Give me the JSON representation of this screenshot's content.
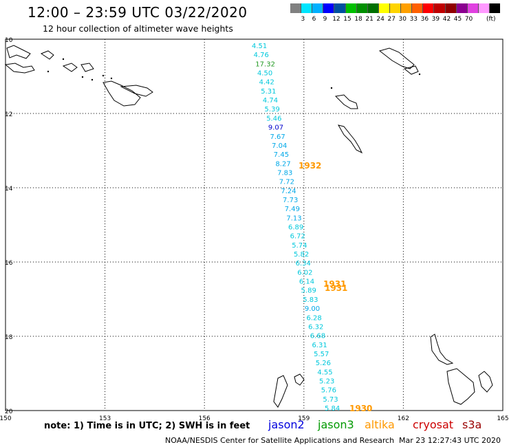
{
  "header": {
    "title": "12:00 – 23:59 UTC 03/22/2020",
    "subtitle": "12 hour collection of altimeter wave heights"
  },
  "legend": {
    "unit": "(ft)",
    "colors": [
      "#808080",
      "#00e5ff",
      "#00b0ff",
      "#0000ff",
      "#0050a0",
      "#00c000",
      "#009000",
      "#007000",
      "#ffff00",
      "#ffd400",
      "#ffa000",
      "#ff6000",
      "#ff0000",
      "#c00000",
      "#900000",
      "#8b0090",
      "#e040e0",
      "#ff99ff",
      "#000000"
    ],
    "labels": [
      "3",
      "6",
      "9",
      "12",
      "15",
      "18",
      "21",
      "24",
      "27",
      "30",
      "33",
      "36",
      "39",
      "42",
      "45",
      "70"
    ]
  },
  "axes": {
    "lat_labels": [
      "10",
      "12",
      "14",
      "16",
      "18",
      "20"
    ],
    "lon_labels": [
      "150",
      "153",
      "156",
      "159",
      "162",
      "165"
    ]
  },
  "readings": [
    {
      "value": "4.51",
      "color": "#00c8dc"
    },
    {
      "value": "4.76",
      "color": "#00c8dc"
    },
    {
      "value": "17.32",
      "color": "#229922"
    },
    {
      "value": "4.50",
      "color": "#00c8dc"
    },
    {
      "value": "4.42",
      "color": "#00c8dc"
    },
    {
      "value": "5.31",
      "color": "#00c8dc"
    },
    {
      "value": "4.74",
      "color": "#00c8dc"
    },
    {
      "value": "5.39",
      "color": "#00c8dc"
    },
    {
      "value": "5.46",
      "color": "#00c8dc"
    },
    {
      "value": "9.07",
      "color": "#0000cc"
    },
    {
      "value": "7.67",
      "color": "#00a8e8"
    },
    {
      "value": "7.04",
      "color": "#00a8e8"
    },
    {
      "value": "7.45",
      "color": "#00a8e8"
    },
    {
      "value": "8.27",
      "color": "#00a8e8"
    },
    {
      "value": "7.83",
      "color": "#00a8e8"
    },
    {
      "value": "7.72",
      "color": "#00a8e8"
    },
    {
      "value": "7.24",
      "color": "#00a8e8"
    },
    {
      "value": "7.73",
      "color": "#00a8e8"
    },
    {
      "value": "7.49",
      "color": "#00a8e8"
    },
    {
      "value": "7.13",
      "color": "#00a8e8"
    },
    {
      "value": "6.89",
      "color": "#00c8dc"
    },
    {
      "value": "6.72",
      "color": "#00c8dc"
    },
    {
      "value": "5.74",
      "color": "#00c8dc"
    },
    {
      "value": "5.82",
      "color": "#00c8dc"
    },
    {
      "value": "6.34",
      "color": "#00c8dc"
    },
    {
      "value": "6.02",
      "color": "#00c8dc"
    },
    {
      "value": "6.14",
      "color": "#00c8dc"
    },
    {
      "value": "5.89",
      "color": "#00c8dc"
    },
    {
      "value": "5.83",
      "color": "#00c8dc"
    },
    {
      "value": "9.00",
      "color": "#00a8e8"
    },
    {
      "value": "6.28",
      "color": "#00c8dc"
    },
    {
      "value": "6.32",
      "color": "#00c8dc"
    },
    {
      "value": "6.68",
      "color": "#00c8dc"
    },
    {
      "value": "6.31",
      "color": "#00c8dc"
    },
    {
      "value": "5.57",
      "color": "#00c8dc"
    },
    {
      "value": "5.26",
      "color": "#00c8dc"
    },
    {
      "value": "4.55",
      "color": "#00c8dc"
    },
    {
      "value": "5.23",
      "color": "#00c8dc"
    },
    {
      "value": "5.76",
      "color": "#00c8dc"
    },
    {
      "value": "5.73",
      "color": "#00c8dc"
    },
    {
      "value": "5.84",
      "color": "#00c8dc"
    }
  ],
  "time_markers": [
    {
      "text": "1932",
      "color": "#ff9900"
    },
    {
      "text": "1931",
      "color": "#ff9900"
    },
    {
      "text": "1931",
      "color": "#ff9900"
    },
    {
      "text": "1930",
      "color": "#ff9900"
    }
  ],
  "footer": {
    "note": "note:  1) Time is in UTC;  2) SWH is in feet",
    "satellites": [
      {
        "name": "jason2",
        "color": "#0000dd"
      },
      {
        "name": "jason3",
        "color": "#009900"
      },
      {
        "name": "altika",
        "color": "#ff9900"
      },
      {
        "name": "cryosat",
        "color": "#cc0000"
      },
      {
        "name": "s3a",
        "color": "#990000"
      }
    ],
    "credit": "NOAA/NESDIS Center for Satellite Applications and Research",
    "timestamp": "Mar 23 12:27:43 UTC 2020"
  }
}
